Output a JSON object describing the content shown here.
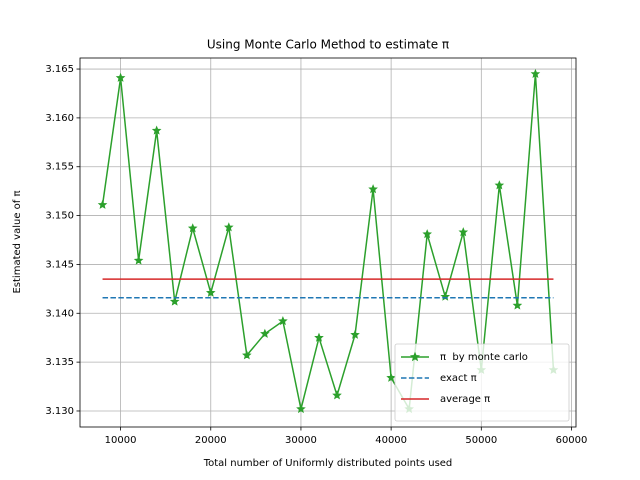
{
  "chart_data": {
    "type": "line",
    "title": "Using Monte Carlo Method to estimate π",
    "xlabel": "Total number of Uniformly distributed points used",
    "ylabel": "Estimated value of π",
    "series": [
      {
        "name": "π  by monte carlo",
        "color": "#2ca02c",
        "linestyle": "solid",
        "marker": "star",
        "x": [
          8000,
          10000,
          12000,
          14000,
          16000,
          18000,
          20000,
          22000,
          24000,
          26000,
          28000,
          30000,
          32000,
          34000,
          36000,
          38000,
          40000,
          42000,
          44000,
          46000,
          48000,
          50000,
          52000,
          54000,
          56000,
          58000
        ],
        "values": [
          3.1511,
          3.1641,
          3.1454,
          3.1587,
          3.1412,
          3.1487,
          3.1421,
          3.1488,
          3.1357,
          3.1379,
          3.1392,
          3.1302,
          3.1375,
          3.1316,
          3.1378,
          3.1527,
          3.1334,
          3.1302,
          3.1481,
          3.1417,
          3.1483,
          3.1342,
          3.1531,
          3.1408,
          3.1645,
          3.1342
        ]
      },
      {
        "name": "exact π",
        "color": "#1f77b4",
        "linestyle": "dashed",
        "x": [
          8000,
          58000
        ],
        "values": [
          3.14159,
          3.14159
        ]
      },
      {
        "name": "average π",
        "color": "#d62728",
        "linestyle": "solid",
        "x": [
          8000,
          58000
        ],
        "values": [
          3.1435,
          3.1435
        ]
      }
    ],
    "xlim": [
      5500,
      60500
    ],
    "xticks": [
      10000,
      20000,
      30000,
      40000,
      50000,
      60000
    ],
    "ylim": [
      3.12836,
      3.16613
    ],
    "yticks": [
      {
        "value": 3.13,
        "label": "3.130"
      },
      3.135,
      {
        "value": 3.14,
        "label": "3.140"
      },
      3.145,
      {
        "value": 3.15,
        "label": "3.150"
      },
      3.155,
      {
        "value": 3.16,
        "label": "3.160"
      },
      3.165
    ],
    "grid": true,
    "legend": "lower right"
  }
}
